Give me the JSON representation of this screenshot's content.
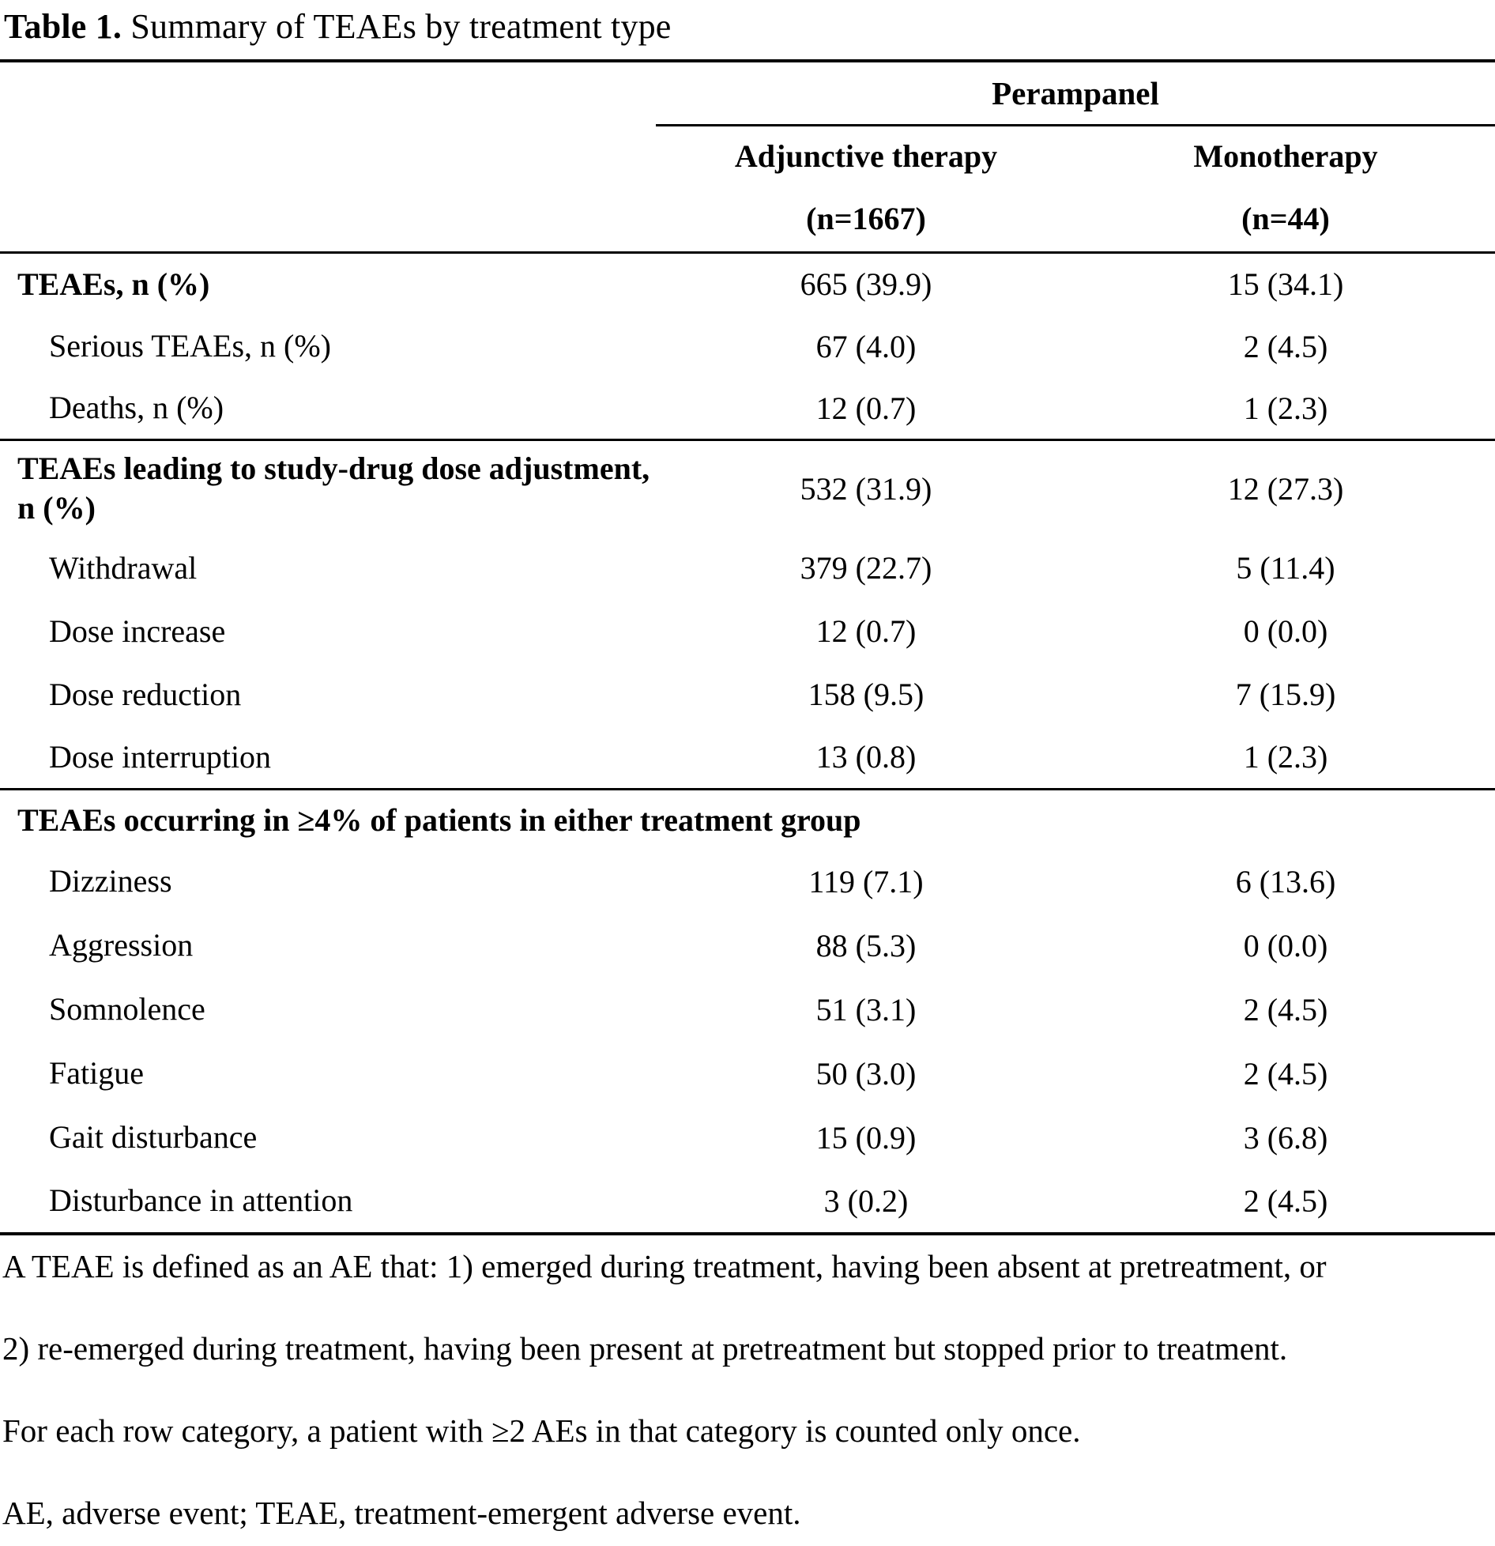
{
  "title": {
    "label": "Table 1.",
    "text": " Summary of TEAEs by treatment type"
  },
  "table": {
    "span_header": "Perampanel",
    "col_headers": [
      "Adjunctive therapy",
      "Monotherapy"
    ],
    "col_ns": [
      "(n=1667)",
      "(n=44)"
    ],
    "rows": [
      {
        "label": "TEAEs, n (%)",
        "c1": "665 (39.9)",
        "c2": "15 (34.1)"
      },
      {
        "label": "Serious TEAEs, n (%)",
        "c1": "67 (4.0)",
        "c2": "2 (4.5)"
      },
      {
        "label": "Deaths, n (%)",
        "c1": "12 (0.7)",
        "c2": "1 (2.3)"
      },
      {
        "label": "TEAEs leading to study-drug dose adjustment, n (%)",
        "c1": "532 (31.9)",
        "c2": "12 (27.3)"
      },
      {
        "label": "Withdrawal",
        "c1": "379 (22.7)",
        "c2": "5 (11.4)"
      },
      {
        "label": "Dose increase",
        "c1": "12 (0.7)",
        "c2": "0 (0.0)"
      },
      {
        "label": "Dose reduction",
        "c1": "158 (9.5)",
        "c2": "7 (15.9)"
      },
      {
        "label": "Dose interruption",
        "c1": "13 (0.8)",
        "c2": "1 (2.3)"
      },
      {
        "label": "TEAEs occurring in ≥4% of patients in either treatment group"
      },
      {
        "label": "Dizziness",
        "c1": "119 (7.1)",
        "c2": "6 (13.6)"
      },
      {
        "label": "Aggression",
        "c1": "88 (5.3)",
        "c2": "0 (0.0)"
      },
      {
        "label": "Somnolence",
        "c1": "51 (3.1)",
        "c2": "2 (4.5)"
      },
      {
        "label": "Fatigue",
        "c1": "50 (3.0)",
        "c2": "2 (4.5)"
      },
      {
        "label": "Gait disturbance",
        "c1": "15 (0.9)",
        "c2": "3 (6.8)"
      },
      {
        "label": "Disturbance in attention",
        "c1": "3 (0.2)",
        "c2": "2 (4.5)"
      }
    ]
  },
  "footnotes": [
    "A TEAE is defined as an AE that: 1) emerged during treatment, having been absent at pretreatment, or",
    "2) re-emerged during treatment, having been present at pretreatment but stopped prior to treatment.",
    "For each row category, a patient with ≥2 AEs in that category is counted only once.",
    "AE, adverse event; TEAE, treatment-emergent adverse event."
  ]
}
